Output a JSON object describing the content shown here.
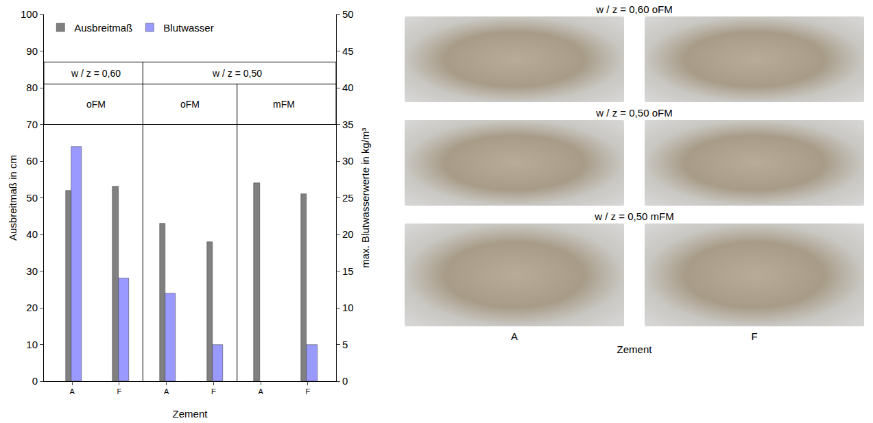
{
  "chart_data": {
    "type": "bar",
    "categories": [
      "A",
      "F",
      "A",
      "F",
      "A",
      "F"
    ],
    "series": [
      {
        "name": "Ausbreitmaß",
        "color": "#808080",
        "values": [
          52,
          53,
          43,
          38,
          54,
          51
        ],
        "axis": "y"
      },
      {
        "name": "Blutwasser",
        "color": "#9999ff",
        "values": [
          32,
          14,
          12,
          5,
          null,
          5
        ],
        "axis": "y2"
      }
    ],
    "xlabel": "Zement",
    "ylabel": "Ausbreitmaß in cm",
    "y2label": "max. Blutwasserwerte in kg/m³",
    "ylim": [
      0,
      100
    ],
    "yticks": [
      0,
      10,
      20,
      30,
      40,
      50,
      60,
      70,
      80,
      90,
      100
    ],
    "y2lim": [
      0,
      50
    ],
    "y2ticks": [
      0,
      5,
      10,
      15,
      20,
      25,
      30,
      35,
      40,
      45,
      50
    ],
    "annotations": [
      "w / z = 0,60",
      "w / z = 0,50",
      "oFM",
      "oFM",
      "mFM"
    ],
    "legend": "top-left",
    "grid": false
  },
  "photo_panel": {
    "rows": [
      "w / z = 0,60 oFM",
      "w / z = 0,50 oFM",
      "w / z = 0,50 mFM"
    ],
    "columns": [
      "A",
      "F"
    ],
    "xlabel": "Zement"
  }
}
